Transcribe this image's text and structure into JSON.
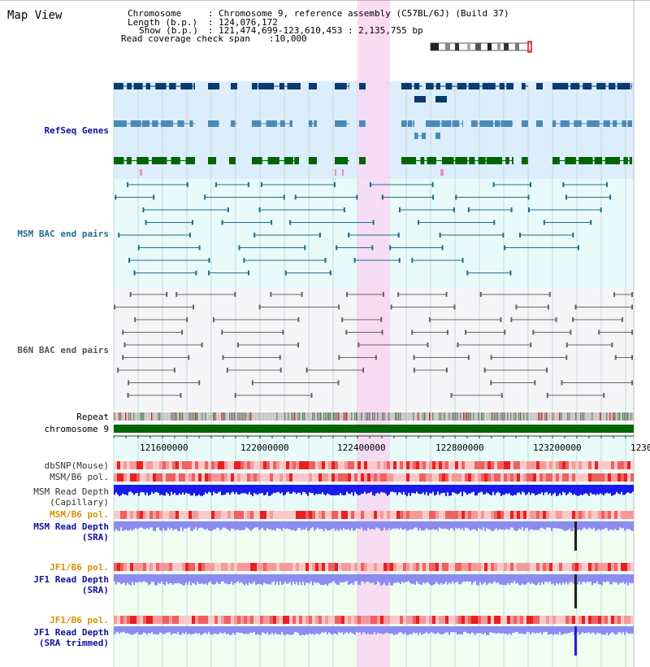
{
  "title": "Map View",
  "info": {
    "chromosome_label": "Chromosome",
    "chromosome_value": "Chromosome 9, reference assembly (C57BL/6J) (Build 37)",
    "length_label": "Length (b.p.)",
    "length_value": "124,076,172",
    "show_label": "Show (b.p.)",
    "show_value": "121,474,699-123,610,453 : 2,135,755 bp",
    "coverage_label": "Read coverage check span",
    "coverage_value": "10,000"
  },
  "tracks": {
    "refseq": "RefSeq Genes",
    "msm_bac": "MSM BAC end pairs",
    "b6n_bac": "B6N BAC end pairs",
    "repeat": "Repeat",
    "chromosome": "chromosome 9",
    "dbsnp": "dbSNP(Mouse)",
    "msm_b6_pol": "MSM/B6 pol.",
    "msm_depth_cap_1": "MSM Read Depth",
    "msm_depth_cap_2": "(Capillary)",
    "msm_b6_pol2": "MSM/B6 pol.",
    "msm_depth_sra_1": "MSM Read Depth",
    "msm_depth_sra_2": "(SRA)",
    "jf1_b6_pol": "JF1/B6 pol.",
    "jf1_depth_sra_1": "JF1 Read Depth",
    "jf1_depth_sra_2": "(SRA)",
    "jf1_b6_pol2": "JF1/B6 pol.",
    "jf1_depth_trim_1": "JF1 Read Depth",
    "jf1_depth_trim_2": "(SRA trimmed)"
  },
  "axis": {
    "ticks": [
      "121600000",
      "122000000",
      "122400000",
      "122800000",
      "123200000",
      "1230"
    ]
  },
  "colors": {
    "refseq_dark": "#0b3a6e",
    "refseq_mid": "#4a8ab8",
    "refseq_green": "#006400",
    "msm_bac": "#1f6f8b",
    "b6n_bac": "#666666",
    "highlight": "#f8d6f2",
    "depth_blue": "#1a1aee",
    "depth_light": "#8c8cf0",
    "pol_red": "#ee3333",
    "label_blue": "#1010a0",
    "label_orange": "#d89000"
  }
}
